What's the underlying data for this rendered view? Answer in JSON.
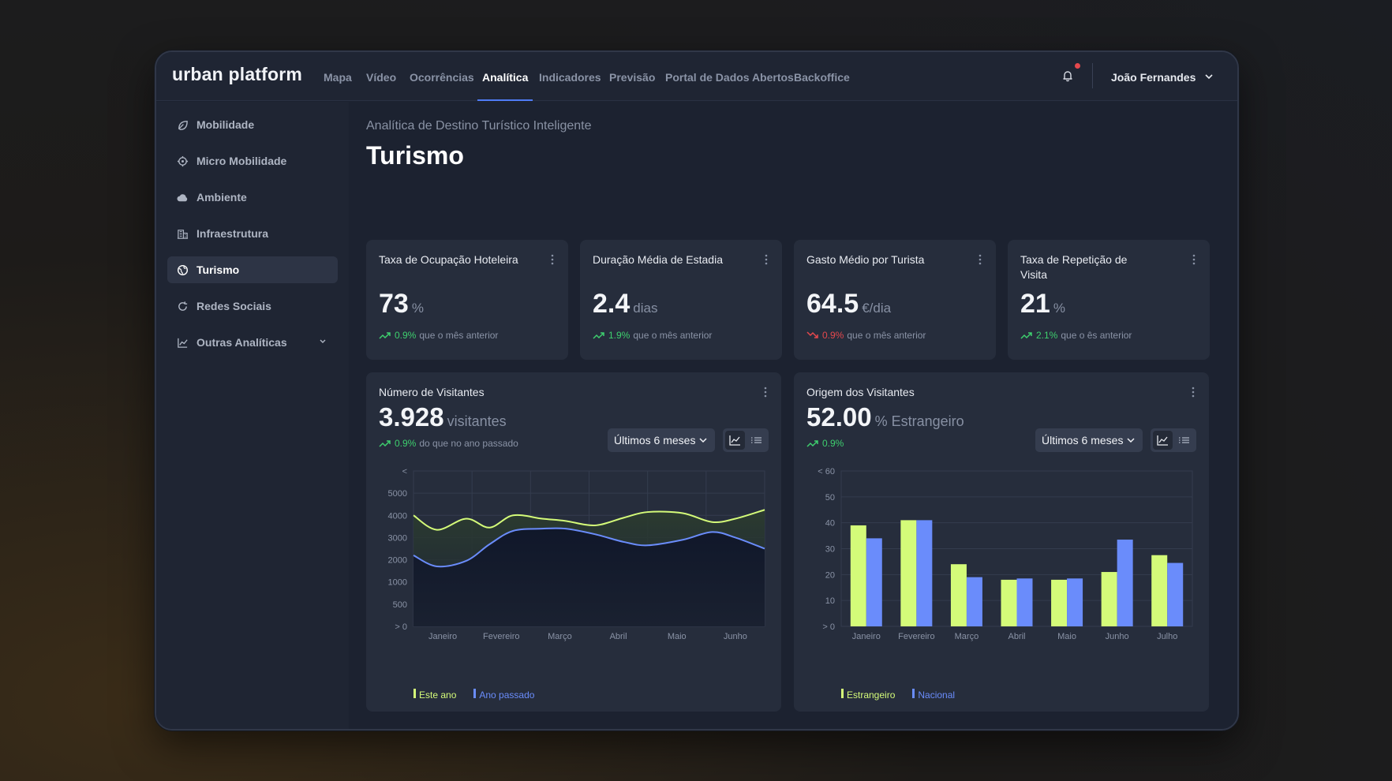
{
  "app": {
    "logo": "urban platform",
    "user": "João Fernandes"
  },
  "nav": [
    "Mapa",
    "Vídeo",
    "Ocorrências",
    "Analítica",
    "Indicadores",
    "Previsão",
    "Portal de Dados Abertos",
    "Backoffice"
  ],
  "nav_active": "Analítica",
  "sidebar": {
    "items": [
      {
        "label": "Mobilidade",
        "icon": "leaf-icon"
      },
      {
        "label": "Micro Mobilidade",
        "icon": "target-icon"
      },
      {
        "label": "Ambiente",
        "icon": "cloud-icon"
      },
      {
        "label": "Infraestrutura",
        "icon": "building-icon"
      },
      {
        "label": "Turismo",
        "icon": "globe-icon",
        "active": true
      },
      {
        "label": "Redes Sociais",
        "icon": "refresh-icon"
      },
      {
        "label": "Outras Analíticas",
        "icon": "chart-icon",
        "expandable": true
      }
    ]
  },
  "page": {
    "subtitle": "Analítica de Destino Turístico Inteligente",
    "title": "Turismo"
  },
  "kpis": [
    {
      "title": "Taxa de Ocupação Hoteleira",
      "value": "73",
      "unit": "%",
      "change": "0.9%",
      "direction": "up",
      "note": "que o mês anterior"
    },
    {
      "title": "Duração Média de Estadia",
      "value": "2.4",
      "unit": "dias",
      "change": "1.9%",
      "direction": "up",
      "note": "que o mês anterior"
    },
    {
      "title": "Gasto Médio por Turista",
      "value": "64.5",
      "unit": "€/dia",
      "change": "0.9%",
      "direction": "down",
      "note": "que o mês anterior"
    },
    {
      "title": "Taxa de Repetição de Visita",
      "value": "21",
      "unit": "%",
      "change": "2.1%",
      "direction": "up",
      "note": "que o ês anterior"
    }
  ],
  "visitors": {
    "title": "Número de Visitantes",
    "value": "3.928",
    "unit": "visitantes",
    "change": "0.9%",
    "note": "do que no ano passado",
    "range": "Últimos 6 meses"
  },
  "origin": {
    "title": "Origem dos Visitantes",
    "value": "52.00",
    "unit": "% Estrangeiro",
    "change": "0.9%",
    "range": "Últimos 6 meses"
  },
  "colors": {
    "green": "#d4fb79",
    "blue": "#6a8cfb",
    "positive": "#3ecf6e",
    "negative": "#e5484d",
    "accent": "#4f7cf6"
  },
  "chart_data": [
    {
      "type": "area",
      "title": "Número de Visitantes",
      "categories": [
        "Janeiro",
        "Fevereiro",
        "Março",
        "Abril",
        "Maio",
        "Junho"
      ],
      "y_ticks": [
        "> 0",
        "500",
        "1000",
        "2000",
        "3000",
        "4000",
        "5000",
        "<"
      ],
      "x": [
        0,
        0.4,
        0.9,
        1.3,
        1.7,
        2.2,
        2.6,
        3.1,
        3.6,
        4.0,
        4.6,
        5.1,
        5.5,
        6.0
      ],
      "series": [
        {
          "name": "Este ano",
          "values": [
            4000,
            3350,
            3850,
            3450,
            4000,
            3850,
            3750,
            3550,
            3900,
            4150,
            4100,
            3700,
            3850,
            4250
          ]
        },
        {
          "name": "Ano passado",
          "values": [
            2200,
            1700,
            1950,
            2700,
            3300,
            3400,
            3400,
            3150,
            2800,
            2650,
            2900,
            3250,
            3000,
            2500
          ]
        }
      ]
    },
    {
      "type": "bar",
      "title": "Origem dos Visitantes",
      "categories": [
        "Janeiro",
        "Fevereiro",
        "Março",
        "Abril",
        "Maio",
        "Junho",
        "Julho"
      ],
      "y_ticks": [
        "> 0",
        "10",
        "20",
        "30",
        "40",
        "50",
        "< 60"
      ],
      "ylim": [
        0,
        60
      ],
      "series": [
        {
          "name": "Estrangeiro",
          "values": [
            39,
            41,
            24,
            18,
            18,
            21,
            27.5
          ]
        },
        {
          "name": "Nacional",
          "values": [
            34,
            41,
            19,
            18.5,
            18.5,
            33.5,
            24.5
          ]
        }
      ]
    }
  ]
}
